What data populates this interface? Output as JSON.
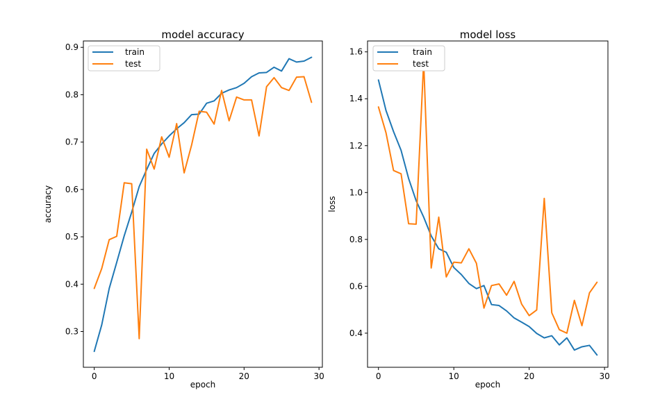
{
  "chart_data": [
    {
      "type": "line",
      "title": "model accuracy",
      "xlabel": "epoch",
      "ylabel": "accuracy",
      "xlim": [
        -1.45,
        30.45
      ],
      "ylim": [
        0.2245,
        0.9135
      ],
      "xticks": [
        0,
        10,
        20,
        30
      ],
      "yticks": [
        0.3,
        0.4,
        0.5,
        0.6,
        0.7,
        0.8,
        0.9
      ],
      "x": [
        0,
        1,
        2,
        3,
        4,
        5,
        6,
        7,
        8,
        9,
        10,
        11,
        12,
        13,
        14,
        15,
        16,
        17,
        18,
        19,
        20,
        21,
        22,
        23,
        24,
        25,
        26,
        27,
        28,
        29
      ],
      "legend": "top-left",
      "series": [
        {
          "name": "train",
          "color": "#1f77b4",
          "values": [
            0.258,
            0.314,
            0.391,
            0.446,
            0.502,
            0.552,
            0.606,
            0.642,
            0.676,
            0.696,
            0.713,
            0.728,
            0.741,
            0.758,
            0.759,
            0.782,
            0.787,
            0.803,
            0.81,
            0.815,
            0.824,
            0.838,
            0.846,
            0.847,
            0.858,
            0.85,
            0.876,
            0.869,
            0.871,
            0.879
          ]
        },
        {
          "name": "test",
          "color": "#ff7f0e",
          "values": [
            0.391,
            0.433,
            0.494,
            0.501,
            0.614,
            0.612,
            0.285,
            0.685,
            0.643,
            0.711,
            0.668,
            0.739,
            0.635,
            0.694,
            0.765,
            0.763,
            0.738,
            0.809,
            0.745,
            0.795,
            0.789,
            0.789,
            0.713,
            0.817,
            0.836,
            0.815,
            0.809,
            0.837,
            0.838,
            0.784
          ]
        }
      ]
    },
    {
      "type": "line",
      "title": "model loss",
      "xlabel": "epoch",
      "ylabel": "loss",
      "xlim": [
        -1.45,
        30.45
      ],
      "ylim": [
        0.2545,
        1.6465
      ],
      "xticks": [
        0,
        10,
        20,
        30
      ],
      "yticks": [
        0.4,
        0.6,
        0.8,
        1.0,
        1.2,
        1.4,
        1.6
      ],
      "x": [
        0,
        1,
        2,
        3,
        4,
        5,
        6,
        7,
        8,
        9,
        10,
        11,
        12,
        13,
        14,
        15,
        16,
        17,
        18,
        19,
        20,
        21,
        22,
        23,
        24,
        25,
        26,
        27,
        28,
        29
      ],
      "legend": "top-left",
      "series": [
        {
          "name": "train",
          "color": "#1f77b4",
          "values": [
            1.48,
            1.35,
            1.26,
            1.18,
            1.06,
            0.965,
            0.895,
            0.815,
            0.76,
            0.745,
            0.68,
            0.65,
            0.612,
            0.59,
            0.603,
            0.522,
            0.518,
            0.495,
            0.465,
            0.447,
            0.428,
            0.399,
            0.38,
            0.389,
            0.35,
            0.38,
            0.328,
            0.342,
            0.348,
            0.307
          ]
        },
        {
          "name": "test",
          "color": "#ff7f0e",
          "values": [
            1.365,
            1.255,
            1.094,
            1.08,
            0.867,
            0.865,
            1.56,
            0.678,
            0.895,
            0.64,
            0.703,
            0.7,
            0.76,
            0.698,
            0.507,
            0.603,
            0.61,
            0.562,
            0.621,
            0.524,
            0.475,
            0.499,
            0.975,
            0.487,
            0.415,
            0.4,
            0.54,
            0.432,
            0.572,
            0.617
          ]
        }
      ]
    }
  ]
}
